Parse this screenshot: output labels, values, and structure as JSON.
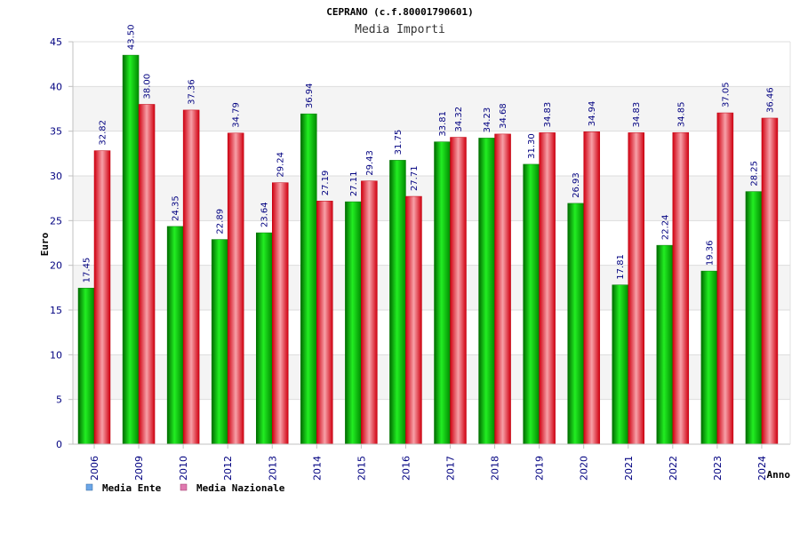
{
  "chart_data": {
    "type": "bar",
    "title": "CEPRANO (c.f.80001790601)",
    "subtitle": "Media Importi",
    "ylabel": "Euro",
    "xlabel": "Anno",
    "ylim": [
      0,
      45
    ],
    "yticks": [
      0,
      5,
      10,
      15,
      20,
      25,
      30,
      35,
      40,
      45
    ],
    "grid": true,
    "legend_position": "bottom-left",
    "categories": [
      "2006",
      "2009",
      "2010",
      "2012",
      "2013",
      "2014",
      "2015",
      "2016",
      "2017",
      "2018",
      "2019",
      "2020",
      "2021",
      "2022",
      "2023",
      "2024"
    ],
    "series": [
      {
        "name": "Media Ente",
        "color": "#00c000",
        "legend_color": "#6ba6e8",
        "values": [
          17.45,
          43.5,
          24.35,
          22.89,
          23.64,
          36.94,
          27.11,
          31.75,
          33.81,
          34.23,
          31.3,
          26.93,
          17.81,
          22.24,
          19.36,
          28.25
        ],
        "labels": [
          "17.45",
          "43.50",
          "24.35",
          "22.89",
          "23.64",
          "36.94",
          "27.11",
          "31.75",
          "33.81",
          "34.23",
          "31.30",
          "26.93",
          "17.81",
          "22.24",
          "19.36",
          "28.25"
        ]
      },
      {
        "name": "Media Nazionale",
        "color": "#e81c2c",
        "legend_color": "#e07ab0",
        "values": [
          32.82,
          38.0,
          37.36,
          34.79,
          29.24,
          27.19,
          29.43,
          27.71,
          34.32,
          34.68,
          34.83,
          34.94,
          34.83,
          34.85,
          37.05,
          36.46
        ],
        "labels": [
          "32.82",
          "38.00",
          "37.36",
          "34.79",
          "29.24",
          "27.19",
          "29.43",
          "27.71",
          "34.32",
          "34.68",
          "34.83",
          "34.94",
          "34.83",
          "34.85",
          "37.05",
          "36.46"
        ]
      }
    ]
  }
}
